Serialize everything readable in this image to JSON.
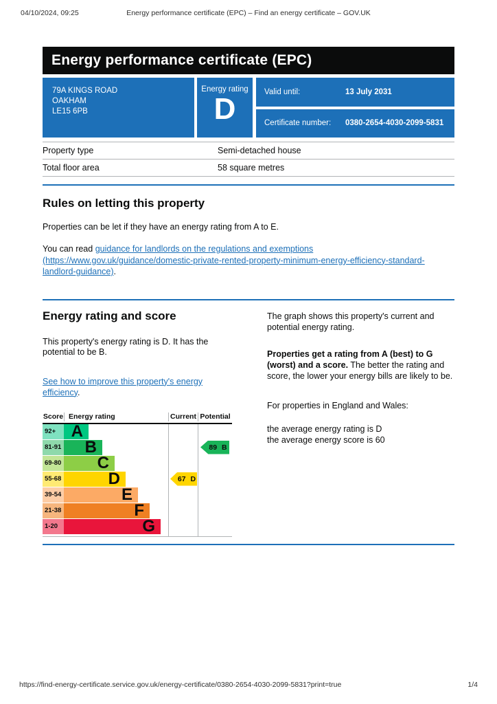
{
  "print_header": {
    "datetime": "04/10/2024, 09:25",
    "title": "Energy performance certificate (EPC) – Find an energy certificate – GOV.UK"
  },
  "banner": {
    "title": "Energy performance certificate (EPC)"
  },
  "summary": {
    "address_lines": [
      "79A KINGS ROAD",
      "OAKHAM",
      "LE15 6PB"
    ],
    "energy_rating_label": "Energy rating",
    "energy_rating": "D",
    "valid_until_label": "Valid until:",
    "valid_until_value": "13 July 2031",
    "certificate_number_label": "Certificate number:",
    "certificate_number_value": "0380-2654-4030-2099-5831"
  },
  "property": {
    "rows": [
      {
        "label": "Property type",
        "value": "Semi-detached house"
      },
      {
        "label": "Total floor area",
        "value": "58 square metres"
      }
    ]
  },
  "rules": {
    "heading": "Rules on letting this property",
    "paragraph": "Properties can be let if they have an energy rating from A to E.",
    "link_prefix": "You can read ",
    "link_text": "guidance for landlords on the regulations and exemptions (https://www.gov.uk/guidance/domestic-private-rented-property-minimum-energy-efficiency-standard-landlord-guidance)",
    "link_suffix": "."
  },
  "rating_section": {
    "heading": "Energy rating and score",
    "intro": "This property's energy rating is D. It has the potential to be B.",
    "improve_link_text": "See how to improve this property's energy efficiency",
    "improve_link_suffix": ".",
    "right_col": {
      "p1": "The graph shows this property's current and potential energy rating.",
      "p2_bold": "Properties get a rating from A (best) to G (worst) and a score.",
      "p2_rest": " The better the rating and score, the lower your energy bills are likely to be.",
      "p3": "For properties in England and Wales:",
      "p4_lines": [
        "the average energy rating is D",
        "the average energy score is 60"
      ]
    }
  },
  "chart_data": {
    "type": "bar",
    "orientation": "horizontal",
    "title": "Energy rating and score graph",
    "columns": [
      "Score",
      "Energy rating",
      "Current",
      "Potential"
    ],
    "bands": [
      {
        "band": "A",
        "score_range": "92+",
        "color": "#00c781",
        "tint": "#7fe2c0",
        "width_pct": 24
      },
      {
        "band": "B",
        "score_range": "81-91",
        "color": "#19b459",
        "tint": "#8ed9ab",
        "width_pct": 37
      },
      {
        "band": "C",
        "score_range": "69-80",
        "color": "#8dce46",
        "tint": "#c2e596",
        "width_pct": 49
      },
      {
        "band": "D",
        "score_range": "55-68",
        "color": "#ffd500",
        "tint": "#ffea73",
        "width_pct": 59
      },
      {
        "band": "E",
        "score_range": "39-54",
        "color": "#fcaa65",
        "tint": "#fdcda6",
        "width_pct": 71
      },
      {
        "band": "F",
        "score_range": "21-38",
        "color": "#ef8023",
        "tint": "#f6b67e",
        "width_pct": 82
      },
      {
        "band": "G",
        "score_range": "1-20",
        "color": "#e9153b",
        "tint": "#f3788d",
        "width_pct": 93
      }
    ],
    "current": {
      "score": 67,
      "band": "D",
      "color": "#ffd500",
      "row_index": 3
    },
    "potential": {
      "score": 89,
      "band": "B",
      "color": "#19b459",
      "row_index": 1
    }
  },
  "footer": {
    "url": "https://find-energy-certificate.service.gov.uk/energy-certificate/0380-2654-4030-2099-5831?print=true",
    "page_indicator": "1/4"
  },
  "colors": {
    "govuk_blue": "#1d70b8",
    "banner_black": "#0b0c0c",
    "link_blue": "#1d70b8"
  }
}
